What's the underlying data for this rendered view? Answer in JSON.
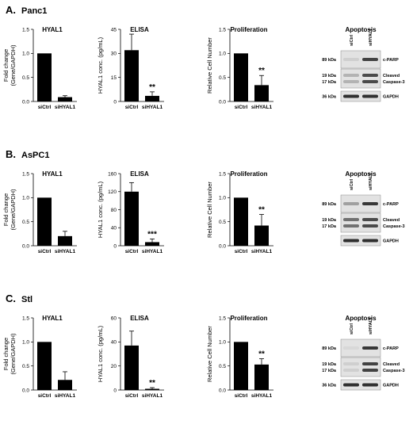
{
  "panels": [
    {
      "letter": "A.",
      "cell_line": "Panc1",
      "charts": [
        {
          "type": "bar",
          "title": "HYAL1",
          "ylabel_lines": [
            "Fold change",
            "(Gene/GAPDH)"
          ],
          "categories": [
            "siCtrl",
            "siHYAL1"
          ],
          "values": [
            1.0,
            0.09
          ],
          "errors": [
            0,
            0.03
          ],
          "ylim": [
            0,
            1.5
          ],
          "yticks": [
            0,
            0.5,
            1.0,
            1.5
          ],
          "tick_format": "decimal",
          "significance": ""
        },
        {
          "type": "bar",
          "title": "ELISA",
          "ylabel_lines": [
            "HYAL1 conc. (pg/mL)"
          ],
          "categories": [
            "siCtrl",
            "siHYAL1"
          ],
          "values": [
            32,
            3.5
          ],
          "errors": [
            10,
            2.5
          ],
          "ylim": [
            0,
            45
          ],
          "yticks": [
            0,
            15,
            30,
            45
          ],
          "tick_format": "int",
          "significance": "**"
        },
        {
          "type": "bar",
          "title": "Proliferation",
          "ylabel_lines": [
            "Relative Cell Number"
          ],
          "categories": [
            "siCtrl",
            "siHYAL1"
          ],
          "values": [
            1.0,
            0.34
          ],
          "errors": [
            0,
            0.2
          ],
          "ylim": [
            0,
            1.5
          ],
          "yticks": [
            0,
            0.5,
            1.0,
            1.5
          ],
          "tick_format": "decimal",
          "significance": "**"
        }
      ],
      "blot": {
        "title": "Apoptosis",
        "lanes": [
          "siCtrl",
          "siHYAL1"
        ],
        "rows": [
          {
            "kda": [
              "89 kDa"
            ],
            "protein": [
              "c-PARP"
            ],
            "intensity": [
              0.1,
              0.85
            ]
          },
          {
            "kda": [
              "19 kDa",
              "17 kDa"
            ],
            "protein": [
              "Cleaved",
              "Caspase-3"
            ],
            "intensity": [
              0.25,
              0.8
            ]
          },
          {
            "kda": [
              "36 kDa"
            ],
            "protein": [
              "GAPDH"
            ],
            "intensity": [
              0.95,
              0.95
            ]
          }
        ]
      }
    },
    {
      "letter": "B.",
      "cell_line": "AsPC1",
      "charts": [
        {
          "type": "bar",
          "title": "HYAL1",
          "ylabel_lines": [
            "Fold change",
            "(Gene/GAPDH)"
          ],
          "categories": [
            "siCtrl",
            "siHYAL1"
          ],
          "values": [
            1.0,
            0.2
          ],
          "errors": [
            0,
            0.1
          ],
          "ylim": [
            0,
            1.5
          ],
          "yticks": [
            0,
            0.5,
            1.0,
            1.5
          ],
          "tick_format": "decimal",
          "significance": ""
        },
        {
          "type": "bar",
          "title": "ELISA",
          "ylabel_lines": [
            "HYAL1 conc. (pg/mL)"
          ],
          "categories": [
            "siCtrl",
            "siHYAL1"
          ],
          "values": [
            120,
            8
          ],
          "errors": [
            20,
            7
          ],
          "ylim": [
            0,
            160
          ],
          "yticks": [
            0,
            40,
            80,
            120,
            160
          ],
          "tick_format": "int",
          "significance": "***"
        },
        {
          "type": "bar",
          "title": "Proliferation",
          "ylabel_lines": [
            "Relative Cell Number"
          ],
          "categories": [
            "siCtrl",
            "siHYAL1"
          ],
          "values": [
            1.0,
            0.42
          ],
          "errors": [
            0,
            0.23
          ],
          "ylim": [
            0,
            1.5
          ],
          "yticks": [
            0,
            0.5,
            1.0,
            1.5
          ],
          "tick_format": "decimal",
          "significance": "**"
        }
      ],
      "blot": {
        "title": "Apoptosis",
        "lanes": [
          "siCtrl",
          "siHYAL1"
        ],
        "rows": [
          {
            "kda": [
              "89 kDa"
            ],
            "protein": [
              "c-PARP"
            ],
            "intensity": [
              0.35,
              0.9
            ]
          },
          {
            "kda": [
              "19 kDa",
              "17 kDa"
            ],
            "protein": [
              "Cleaved",
              "Caspase-3"
            ],
            "intensity": [
              0.6,
              0.8
            ]
          },
          {
            "kda": [
              ""
            ],
            "protein": [
              "GAPDH"
            ],
            "intensity": [
              0.95,
              0.95
            ]
          }
        ]
      }
    },
    {
      "letter": "C.",
      "cell_line": "Stl",
      "charts": [
        {
          "type": "bar",
          "title": "HYAL1",
          "ylabel_lines": [
            "Fold change",
            "(Gene/GAPDH)"
          ],
          "categories": [
            "siCtrl",
            "siHYAL1"
          ],
          "values": [
            1.0,
            0.21
          ],
          "errors": [
            0,
            0.17
          ],
          "ylim": [
            0,
            1.5
          ],
          "yticks": [
            0,
            0.5,
            1.0,
            1.5
          ],
          "tick_format": "decimal",
          "significance": ""
        },
        {
          "type": "bar",
          "title": "ELISA",
          "ylabel_lines": [
            "HYAL1 conc. (pg/mL)"
          ],
          "categories": [
            "siCtrl",
            "siHYAL1"
          ],
          "values": [
            37,
            1
          ],
          "errors": [
            12,
            1
          ],
          "ylim": [
            0,
            60
          ],
          "yticks": [
            0,
            20,
            40,
            60
          ],
          "tick_format": "int",
          "significance": "**"
        },
        {
          "type": "bar",
          "title": "Proliferation",
          "ylabel_lines": [
            "Relative Cell Number"
          ],
          "categories": [
            "siCtrl",
            "siHYAL1"
          ],
          "values": [
            1.0,
            0.53
          ],
          "errors": [
            0,
            0.12
          ],
          "ylim": [
            0,
            1.5
          ],
          "yticks": [
            0,
            0.5,
            1.0,
            1.5
          ],
          "tick_format": "decimal",
          "significance": "**"
        }
      ],
      "blot": {
        "title": "Apoptosis",
        "lanes": [
          "siCtrl",
          "siHYAL1"
        ],
        "rows": [
          {
            "kda": [
              "89 kDa"
            ],
            "protein": [
              "c-PARP"
            ],
            "intensity": [
              0.05,
              0.9
            ]
          },
          {
            "kda": [
              "19 kDa",
              "17 kDa"
            ],
            "protein": [
              "Cleaved",
              "Caspase-3"
            ],
            "intensity": [
              0.1,
              0.85
            ]
          },
          {
            "kda": [
              "36 kDa"
            ],
            "protein": [
              "GAPDH"
            ],
            "intensity": [
              0.95,
              0.95
            ]
          }
        ]
      }
    }
  ]
}
